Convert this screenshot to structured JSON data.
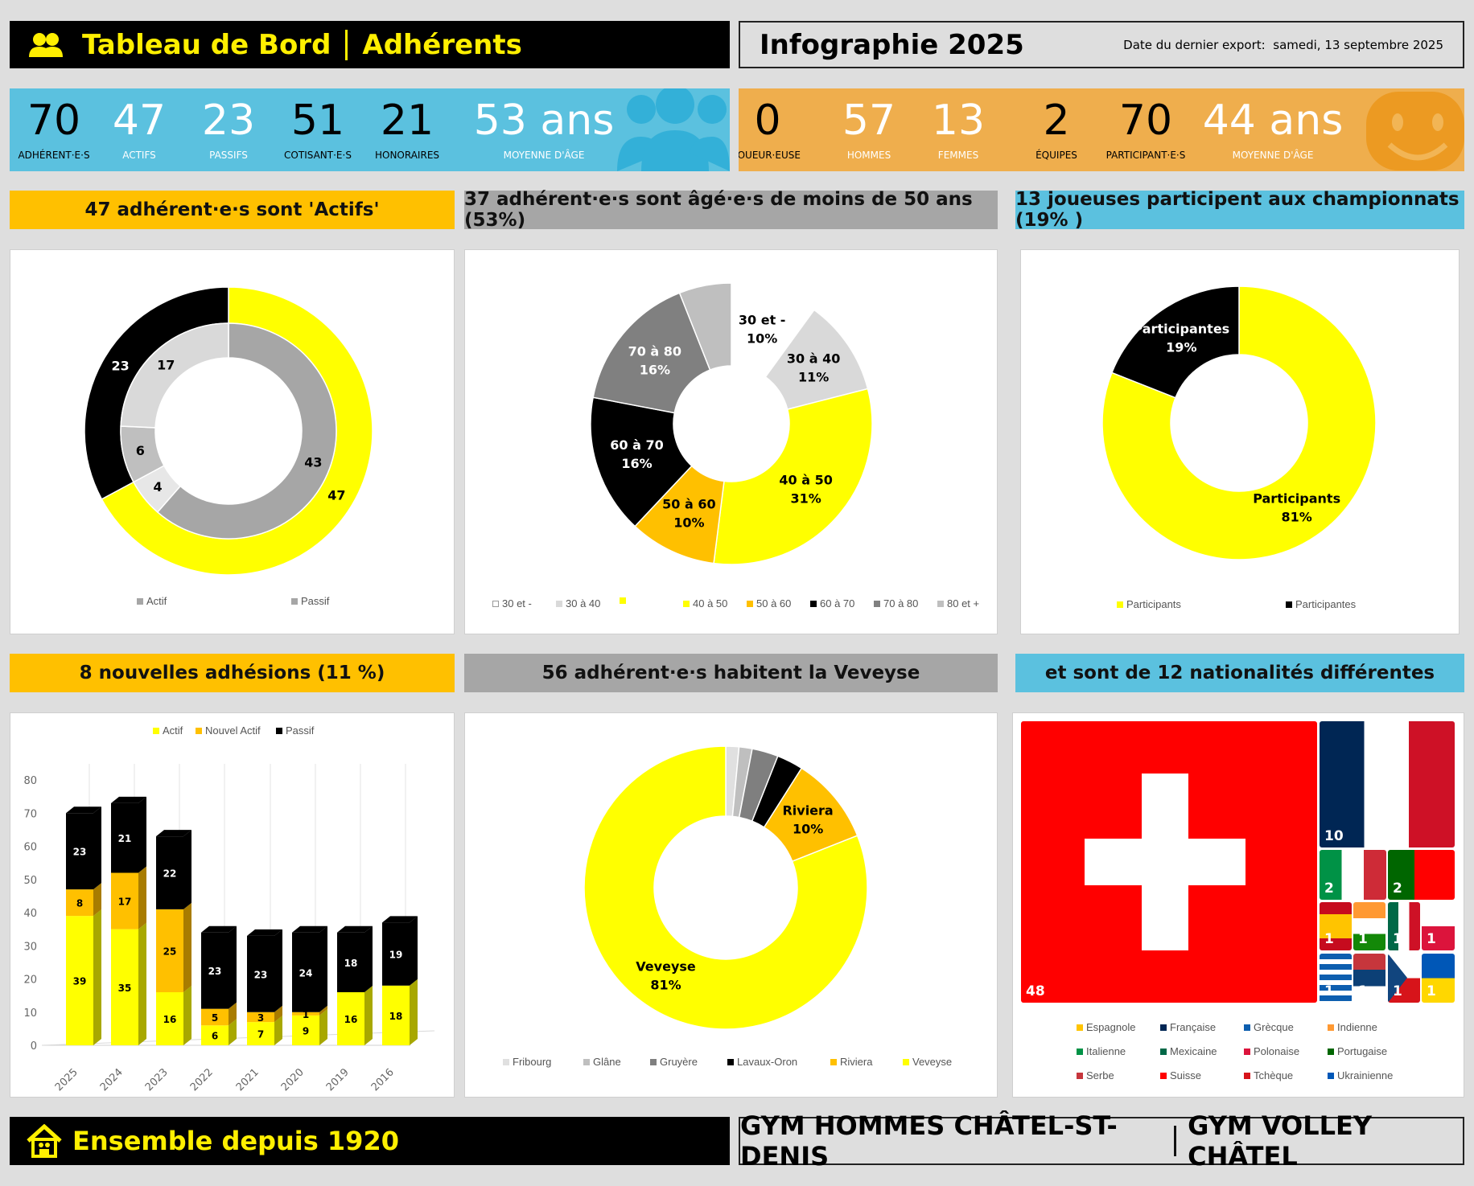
{
  "header": {
    "title": "Tableau de Bord",
    "subtitle": "Adhérents",
    "infographie": "Infographie 2025",
    "export_label": "Date du dernier export:",
    "export_date": "samedi, 13 septembre 2025"
  },
  "kpi_blue": [
    {
      "value": "70",
      "label": "ADHÉRENT·E·S"
    },
    {
      "value": "47",
      "label": "ACTIFS"
    },
    {
      "value": "23",
      "label": "PASSIFS"
    },
    {
      "value": "51",
      "label": "COTISANT·E·S"
    },
    {
      "value": "21",
      "label": "HONORAIRES"
    },
    {
      "value": "53 ans",
      "label": "MOYENNE D'ÂGE"
    }
  ],
  "kpi_orange": [
    {
      "value": "0",
      "label": "JOUEUR·EUSE"
    },
    {
      "value": "57",
      "label": "HOMMES"
    },
    {
      "value": "13",
      "label": "FEMMES"
    },
    {
      "value": "2",
      "label": "ÉQUIPES"
    },
    {
      "value": "70",
      "label": "PARTICIPANT·E·S"
    },
    {
      "value": "44 ans",
      "label": "MOYENNE D'ÂGE"
    }
  ],
  "sections": {
    "s1": "47 adhérent·e·s sont 'Actifs'",
    "s2": "37 adhérent·e·s sont âgé·e·s de moins de 50 ans (53%)",
    "s3": "13 joueuses participent aux championnats (19% )",
    "s4": "8 nouvelles adhésions (11 %)",
    "s5": "56 adhérent·e·s habitent la Veveyse",
    "s6": "et sont de 12 nationalités différentes"
  },
  "footer": {
    "left": "Ensemble depuis 1920",
    "right1": "GYM HOMMES CHÂTEL-ST-DENIS",
    "right2": "GYM VOLLEY CHÂTEL"
  },
  "chart_data": [
    {
      "type": "pie",
      "name": "actifs-donut",
      "legend": [
        "Actif",
        "Passif"
      ],
      "outer": [
        {
          "label": "Actif",
          "value": 47,
          "color": "#ffff00"
        },
        {
          "label": "Passif",
          "value": 23,
          "color": "#000000"
        }
      ],
      "inner": [
        {
          "value": 43,
          "color": "#a6a6a6"
        },
        {
          "value": 4,
          "color": "#e7e7e7"
        },
        {
          "value": 6,
          "color": "#bfbfbf"
        },
        {
          "value": 17,
          "color": "#d9d9d9"
        }
      ]
    },
    {
      "type": "pie",
      "name": "age-donut",
      "slices": [
        {
          "label": "30 et -",
          "value": 10,
          "color": "#ffffff"
        },
        {
          "label": "30 à 40",
          "value": 11,
          "color": "#d9d9d9"
        },
        {
          "label": "40 à 50",
          "value": 31,
          "color": "#ffff00"
        },
        {
          "label": "50 à 60",
          "value": 10,
          "color": "#ffc000"
        },
        {
          "label": "60 à 70",
          "value": 16,
          "color": "#000000"
        },
        {
          "label": "70 à 80",
          "value": 16,
          "color": "#808080"
        },
        {
          "label": "80 et +",
          "value": 6,
          "color": "#bfbfbf"
        }
      ],
      "legend": [
        {
          "label": "30 et -",
          "color": "#ffffff"
        },
        {
          "label": "30 à 40",
          "color": "#d9d9d9"
        },
        {
          "label": "",
          "color": "#ffff00"
        },
        {
          "label": "40 à 50",
          "color": "#ffff00"
        },
        {
          "label": "50 à 60",
          "color": "#ffc000"
        },
        {
          "label": "60 à 70",
          "color": "#000000"
        },
        {
          "label": "70 à 80",
          "color": "#808080"
        },
        {
          "label": "80 et +",
          "color": "#bfbfbf"
        }
      ]
    },
    {
      "type": "pie",
      "name": "championnats-donut",
      "slices": [
        {
          "label": "Participants",
          "value": 81,
          "color": "#ffff00"
        },
        {
          "label": "Participantes",
          "value": 19,
          "color": "#000000"
        }
      ]
    },
    {
      "type": "bar",
      "name": "adhesions-bar",
      "stacked": true,
      "categories": [
        "2025",
        "2024",
        "2023",
        "2022",
        "2021",
        "2020",
        "2019",
        "2016"
      ],
      "ylim": [
        0,
        80
      ],
      "yticks": [
        0,
        10,
        20,
        30,
        40,
        50,
        60,
        70,
        80
      ],
      "series": [
        {
          "name": "Actif",
          "color": "#ffff00",
          "values": [
            39,
            35,
            16,
            6,
            7,
            9,
            16,
            18
          ]
        },
        {
          "name": "Nouvel Actif",
          "color": "#ffc000",
          "values": [
            8,
            17,
            25,
            5,
            3,
            1,
            0,
            0
          ]
        },
        {
          "name": "Passif",
          "color": "#000000",
          "values": [
            23,
            21,
            22,
            23,
            23,
            24,
            18,
            19
          ]
        }
      ]
    },
    {
      "type": "pie",
      "name": "region-donut",
      "slices": [
        {
          "label": "Fribourg",
          "value": 1.5,
          "color": "#e0e0e0"
        },
        {
          "label": "Glâne",
          "value": 1.5,
          "color": "#bfbfbf"
        },
        {
          "label": "Gruyère",
          "value": 3,
          "color": "#7f7f7f"
        },
        {
          "label": "Lavaux-Oron",
          "value": 3,
          "color": "#000000"
        },
        {
          "label": "Riviera",
          "value": 10,
          "color": "#ffc000"
        },
        {
          "label": "Veveyse",
          "value": 81,
          "color": "#ffff00"
        }
      ]
    },
    {
      "type": "treemap",
      "name": "nationalites",
      "items": [
        {
          "label": "Suisse",
          "value": 48
        },
        {
          "label": "Française",
          "value": 10
        },
        {
          "label": "Italienne",
          "value": 2
        },
        {
          "label": "Portugaise",
          "value": 2
        },
        {
          "label": "Espagnole",
          "value": 1
        },
        {
          "label": "Indienne",
          "value": 1
        },
        {
          "label": "Mexicaine",
          "value": 1
        },
        {
          "label": "Polonaise",
          "value": 1
        },
        {
          "label": "Grècque",
          "value": 1
        },
        {
          "label": "Serbe",
          "value": 1
        },
        {
          "label": "Tchèque",
          "value": 1
        },
        {
          "label": "Ukrainienne",
          "value": 1
        }
      ],
      "legend": [
        "Espagnole",
        "Française",
        "Grècque",
        "Indienne",
        "Italienne",
        "Mexicaine",
        "Polonaise",
        "Portugaise",
        "Serbe",
        "Suisse",
        "Tchèque",
        "Ukrainienne"
      ]
    }
  ]
}
